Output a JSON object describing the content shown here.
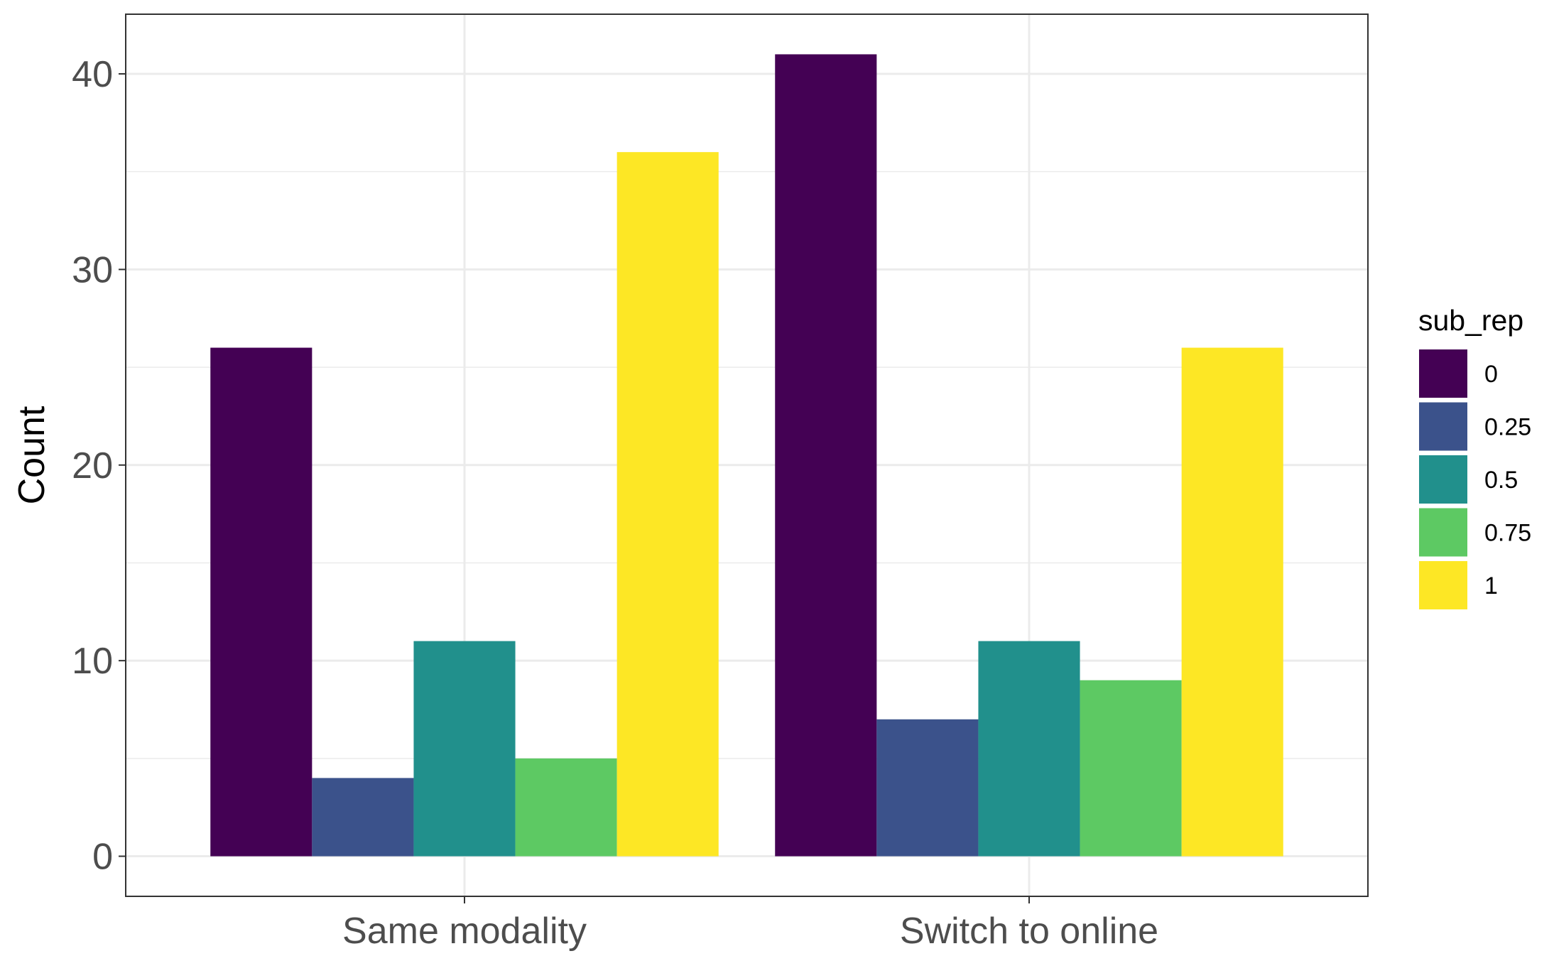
{
  "chart_data": {
    "type": "bar",
    "title": "",
    "xlabel": "",
    "ylabel": "Count",
    "categories": [
      "Same modality",
      "Switch to online"
    ],
    "series": [
      {
        "name": "0",
        "color": "#440154",
        "values": [
          26,
          41
        ]
      },
      {
        "name": "0.25",
        "color": "#3b528b",
        "values": [
          4,
          7
        ]
      },
      {
        "name": "0.5",
        "color": "#21908c",
        "values": [
          11,
          11
        ]
      },
      {
        "name": "0.75",
        "color": "#5dc963",
        "values": [
          5,
          9
        ]
      },
      {
        "name": "1",
        "color": "#fde725",
        "values": [
          36,
          26
        ]
      }
    ],
    "ylim": [
      -2.05,
      43.05
    ],
    "yticks": [
      0,
      10,
      20,
      30,
      40
    ],
    "grid": true,
    "legend": {
      "title": "sub_rep",
      "position": "right"
    }
  }
}
